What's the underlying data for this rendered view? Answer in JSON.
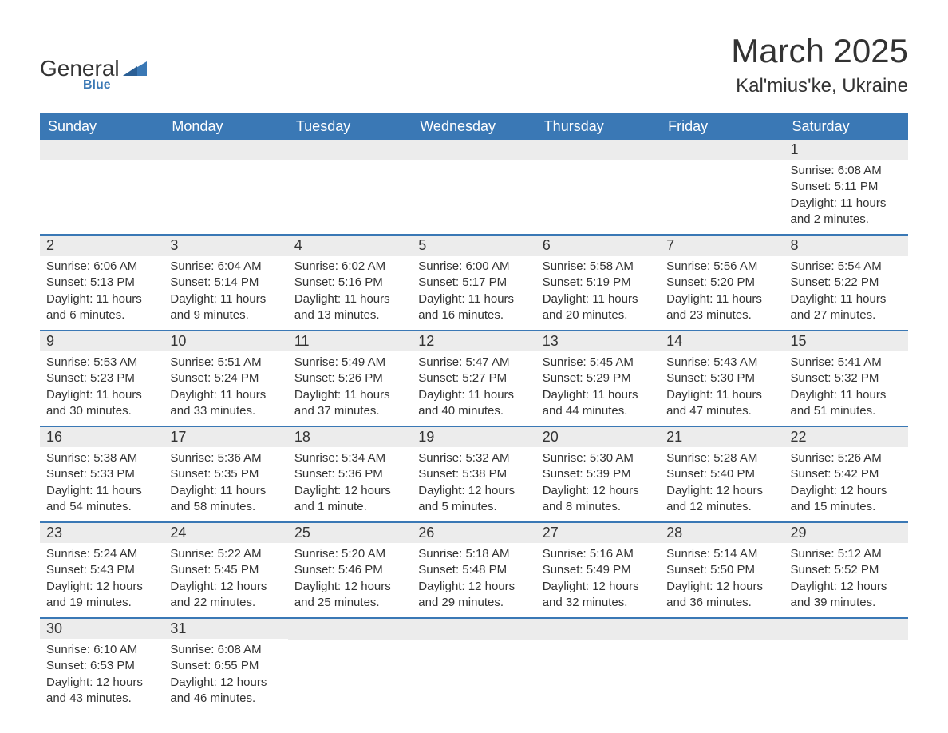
{
  "logo": {
    "word1": "General",
    "word2": "Blue",
    "accent_color": "#3a78b5",
    "text_color": "#333333"
  },
  "header": {
    "month_title": "March 2025",
    "location": "Kal'mius'ke, Ukraine",
    "title_fontsize": 42,
    "location_fontsize": 24
  },
  "styling": {
    "header_row_bg": "#3a78b5",
    "header_row_text": "#ffffff",
    "daynum_bg": "#ececec",
    "row_divider_color": "#3a78b5",
    "body_text_color": "#333333",
    "body_fontsize": 15,
    "daynum_fontsize": 18,
    "dayhead_fontsize": 18,
    "background_color": "#ffffff"
  },
  "dayheaders": [
    "Sunday",
    "Monday",
    "Tuesday",
    "Wednesday",
    "Thursday",
    "Friday",
    "Saturday"
  ],
  "weeks": [
    [
      null,
      null,
      null,
      null,
      null,
      null,
      {
        "num": "1",
        "sunrise": "Sunrise: 6:08 AM",
        "sunset": "Sunset: 5:11 PM",
        "daylight": "Daylight: 11 hours and 2 minutes."
      }
    ],
    [
      {
        "num": "2",
        "sunrise": "Sunrise: 6:06 AM",
        "sunset": "Sunset: 5:13 PM",
        "daylight": "Daylight: 11 hours and 6 minutes."
      },
      {
        "num": "3",
        "sunrise": "Sunrise: 6:04 AM",
        "sunset": "Sunset: 5:14 PM",
        "daylight": "Daylight: 11 hours and 9 minutes."
      },
      {
        "num": "4",
        "sunrise": "Sunrise: 6:02 AM",
        "sunset": "Sunset: 5:16 PM",
        "daylight": "Daylight: 11 hours and 13 minutes."
      },
      {
        "num": "5",
        "sunrise": "Sunrise: 6:00 AM",
        "sunset": "Sunset: 5:17 PM",
        "daylight": "Daylight: 11 hours and 16 minutes."
      },
      {
        "num": "6",
        "sunrise": "Sunrise: 5:58 AM",
        "sunset": "Sunset: 5:19 PM",
        "daylight": "Daylight: 11 hours and 20 minutes."
      },
      {
        "num": "7",
        "sunrise": "Sunrise: 5:56 AM",
        "sunset": "Sunset: 5:20 PM",
        "daylight": "Daylight: 11 hours and 23 minutes."
      },
      {
        "num": "8",
        "sunrise": "Sunrise: 5:54 AM",
        "sunset": "Sunset: 5:22 PM",
        "daylight": "Daylight: 11 hours and 27 minutes."
      }
    ],
    [
      {
        "num": "9",
        "sunrise": "Sunrise: 5:53 AM",
        "sunset": "Sunset: 5:23 PM",
        "daylight": "Daylight: 11 hours and 30 minutes."
      },
      {
        "num": "10",
        "sunrise": "Sunrise: 5:51 AM",
        "sunset": "Sunset: 5:24 PM",
        "daylight": "Daylight: 11 hours and 33 minutes."
      },
      {
        "num": "11",
        "sunrise": "Sunrise: 5:49 AM",
        "sunset": "Sunset: 5:26 PM",
        "daylight": "Daylight: 11 hours and 37 minutes."
      },
      {
        "num": "12",
        "sunrise": "Sunrise: 5:47 AM",
        "sunset": "Sunset: 5:27 PM",
        "daylight": "Daylight: 11 hours and 40 minutes."
      },
      {
        "num": "13",
        "sunrise": "Sunrise: 5:45 AM",
        "sunset": "Sunset: 5:29 PM",
        "daylight": "Daylight: 11 hours and 44 minutes."
      },
      {
        "num": "14",
        "sunrise": "Sunrise: 5:43 AM",
        "sunset": "Sunset: 5:30 PM",
        "daylight": "Daylight: 11 hours and 47 minutes."
      },
      {
        "num": "15",
        "sunrise": "Sunrise: 5:41 AM",
        "sunset": "Sunset: 5:32 PM",
        "daylight": "Daylight: 11 hours and 51 minutes."
      }
    ],
    [
      {
        "num": "16",
        "sunrise": "Sunrise: 5:38 AM",
        "sunset": "Sunset: 5:33 PM",
        "daylight": "Daylight: 11 hours and 54 minutes."
      },
      {
        "num": "17",
        "sunrise": "Sunrise: 5:36 AM",
        "sunset": "Sunset: 5:35 PM",
        "daylight": "Daylight: 11 hours and 58 minutes."
      },
      {
        "num": "18",
        "sunrise": "Sunrise: 5:34 AM",
        "sunset": "Sunset: 5:36 PM",
        "daylight": "Daylight: 12 hours and 1 minute."
      },
      {
        "num": "19",
        "sunrise": "Sunrise: 5:32 AM",
        "sunset": "Sunset: 5:38 PM",
        "daylight": "Daylight: 12 hours and 5 minutes."
      },
      {
        "num": "20",
        "sunrise": "Sunrise: 5:30 AM",
        "sunset": "Sunset: 5:39 PM",
        "daylight": "Daylight: 12 hours and 8 minutes."
      },
      {
        "num": "21",
        "sunrise": "Sunrise: 5:28 AM",
        "sunset": "Sunset: 5:40 PM",
        "daylight": "Daylight: 12 hours and 12 minutes."
      },
      {
        "num": "22",
        "sunrise": "Sunrise: 5:26 AM",
        "sunset": "Sunset: 5:42 PM",
        "daylight": "Daylight: 12 hours and 15 minutes."
      }
    ],
    [
      {
        "num": "23",
        "sunrise": "Sunrise: 5:24 AM",
        "sunset": "Sunset: 5:43 PM",
        "daylight": "Daylight: 12 hours and 19 minutes."
      },
      {
        "num": "24",
        "sunrise": "Sunrise: 5:22 AM",
        "sunset": "Sunset: 5:45 PM",
        "daylight": "Daylight: 12 hours and 22 minutes."
      },
      {
        "num": "25",
        "sunrise": "Sunrise: 5:20 AM",
        "sunset": "Sunset: 5:46 PM",
        "daylight": "Daylight: 12 hours and 25 minutes."
      },
      {
        "num": "26",
        "sunrise": "Sunrise: 5:18 AM",
        "sunset": "Sunset: 5:48 PM",
        "daylight": "Daylight: 12 hours and 29 minutes."
      },
      {
        "num": "27",
        "sunrise": "Sunrise: 5:16 AM",
        "sunset": "Sunset: 5:49 PM",
        "daylight": "Daylight: 12 hours and 32 minutes."
      },
      {
        "num": "28",
        "sunrise": "Sunrise: 5:14 AM",
        "sunset": "Sunset: 5:50 PM",
        "daylight": "Daylight: 12 hours and 36 minutes."
      },
      {
        "num": "29",
        "sunrise": "Sunrise: 5:12 AM",
        "sunset": "Sunset: 5:52 PM",
        "daylight": "Daylight: 12 hours and 39 minutes."
      }
    ],
    [
      {
        "num": "30",
        "sunrise": "Sunrise: 6:10 AM",
        "sunset": "Sunset: 6:53 PM",
        "daylight": "Daylight: 12 hours and 43 minutes."
      },
      {
        "num": "31",
        "sunrise": "Sunrise: 6:08 AM",
        "sunset": "Sunset: 6:55 PM",
        "daylight": "Daylight: 12 hours and 46 minutes."
      },
      null,
      null,
      null,
      null,
      null
    ]
  ]
}
